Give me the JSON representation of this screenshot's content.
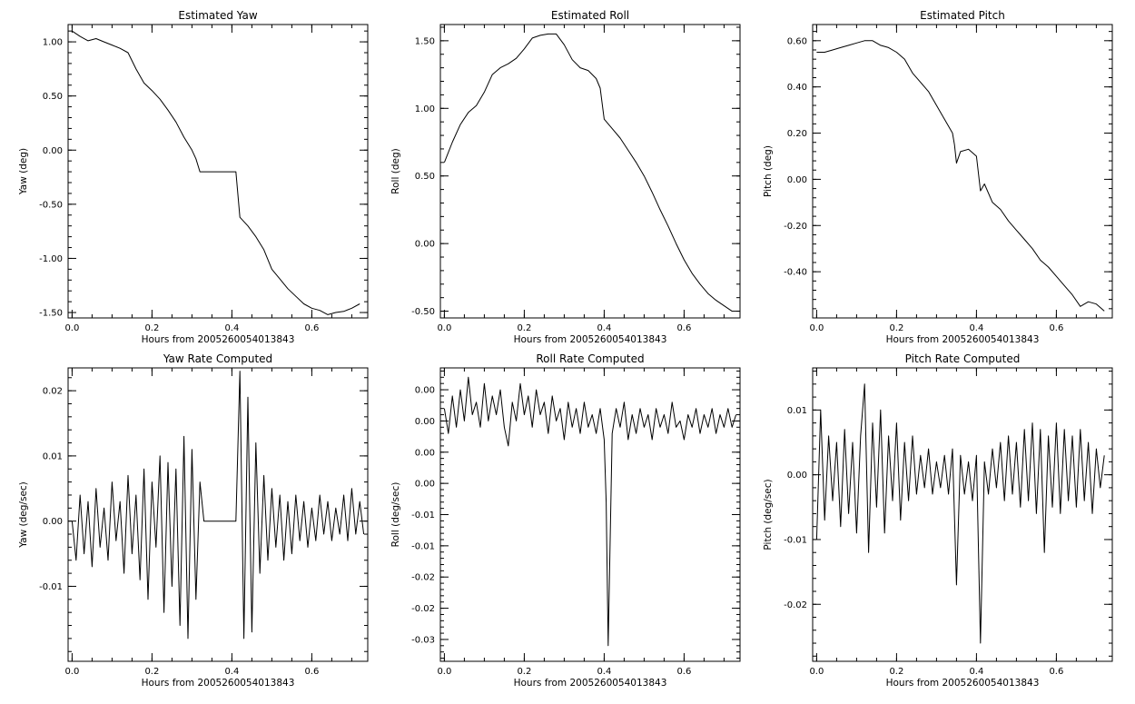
{
  "chart_data": [
    {
      "type": "line",
      "title": "Estimated Yaw",
      "xlabel": "Hours from 2005260054013843",
      "ylabel": "Yaw (deg)",
      "xlim": [
        -0.01,
        0.74
      ],
      "ylim": [
        -1.55,
        1.16
      ],
      "xticks": [
        0.0,
        0.2,
        0.4,
        0.6
      ],
      "xtick_labels": [
        "0.0",
        "0.2",
        "0.4",
        "0.6"
      ],
      "yticks": [
        -1.5,
        -1.0,
        -0.5,
        0.0,
        0.5,
        1.0
      ],
      "ytick_labels": [
        "-1.50",
        "-1.00",
        "-0.50",
        "0.00",
        "0.50",
        "1.00"
      ],
      "x": [
        0.0,
        0.02,
        0.04,
        0.06,
        0.08,
        0.1,
        0.12,
        0.14,
        0.16,
        0.18,
        0.2,
        0.22,
        0.24,
        0.26,
        0.28,
        0.3,
        0.31,
        0.32,
        0.33,
        0.35,
        0.38,
        0.41,
        0.42,
        0.44,
        0.46,
        0.48,
        0.5,
        0.52,
        0.54,
        0.56,
        0.58,
        0.6,
        0.62,
        0.64,
        0.66,
        0.68,
        0.7,
        0.72
      ],
      "values": [
        1.1,
        1.05,
        1.01,
        1.03,
        1.0,
        0.97,
        0.94,
        0.9,
        0.75,
        0.62,
        0.55,
        0.47,
        0.37,
        0.26,
        0.12,
        0.0,
        -0.08,
        -0.2,
        -0.2,
        -0.2,
        -0.2,
        -0.2,
        -0.62,
        -0.7,
        -0.8,
        -0.92,
        -1.1,
        -1.19,
        -1.28,
        -1.35,
        -1.42,
        -1.46,
        -1.48,
        -1.52,
        -1.5,
        -1.49,
        -1.46,
        -1.42
      ]
    },
    {
      "type": "line",
      "title": "Estimated Roll",
      "xlabel": "Hours from 2005260054013843",
      "ylabel": "Roll (deg)",
      "xlim": [
        -0.01,
        0.74
      ],
      "ylim": [
        -0.55,
        1.62
      ],
      "xticks": [
        0.0,
        0.2,
        0.4,
        0.6
      ],
      "xtick_labels": [
        "0.0",
        "0.2",
        "0.4",
        "0.6"
      ],
      "yticks": [
        -0.5,
        0.0,
        0.5,
        1.0,
        1.5
      ],
      "ytick_labels": [
        "-0.50",
        "0.00",
        "0.50",
        "1.00",
        "1.50"
      ],
      "x": [
        0.0,
        0.02,
        0.04,
        0.06,
        0.08,
        0.1,
        0.12,
        0.14,
        0.16,
        0.18,
        0.2,
        0.22,
        0.24,
        0.26,
        0.28,
        0.3,
        0.32,
        0.34,
        0.36,
        0.38,
        0.39,
        0.4,
        0.42,
        0.44,
        0.46,
        0.48,
        0.5,
        0.52,
        0.54,
        0.56,
        0.58,
        0.6,
        0.62,
        0.64,
        0.66,
        0.68,
        0.7,
        0.72
      ],
      "values": [
        0.6,
        0.75,
        0.88,
        0.97,
        1.02,
        1.12,
        1.25,
        1.3,
        1.33,
        1.37,
        1.44,
        1.52,
        1.54,
        1.55,
        1.55,
        1.47,
        1.36,
        1.3,
        1.28,
        1.22,
        1.15,
        0.92,
        0.85,
        0.78,
        0.69,
        0.6,
        0.5,
        0.38,
        0.25,
        0.13,
        0.0,
        -0.12,
        -0.22,
        -0.3,
        -0.37,
        -0.42,
        -0.46,
        -0.5
      ]
    },
    {
      "type": "line",
      "title": "Estimated Pitch",
      "xlabel": "Hours from 2005260054013843",
      "ylabel": "Pitch (deg)",
      "xlim": [
        -0.01,
        0.74
      ],
      "ylim": [
        -0.6,
        0.67
      ],
      "xticks": [
        0.0,
        0.2,
        0.4,
        0.6
      ],
      "xtick_labels": [
        "0.0",
        "0.2",
        "0.4",
        "0.6"
      ],
      "yticks": [
        -0.4,
        -0.2,
        0.0,
        0.2,
        0.4,
        0.6
      ],
      "ytick_labels": [
        "-0.40",
        "-0.20",
        "0.00",
        "0.20",
        "0.40",
        "0.60"
      ],
      "x": [
        0.0,
        0.02,
        0.04,
        0.06,
        0.08,
        0.1,
        0.12,
        0.14,
        0.16,
        0.18,
        0.2,
        0.22,
        0.24,
        0.26,
        0.28,
        0.3,
        0.32,
        0.34,
        0.345,
        0.35,
        0.36,
        0.38,
        0.4,
        0.41,
        0.42,
        0.44,
        0.46,
        0.48,
        0.5,
        0.52,
        0.54,
        0.56,
        0.58,
        0.6,
        0.62,
        0.64,
        0.66,
        0.68,
        0.7,
        0.72
      ],
      "values": [
        0.55,
        0.55,
        0.56,
        0.57,
        0.58,
        0.59,
        0.6,
        0.6,
        0.58,
        0.57,
        0.55,
        0.52,
        0.46,
        0.42,
        0.38,
        0.32,
        0.26,
        0.2,
        0.15,
        0.07,
        0.12,
        0.13,
        0.1,
        -0.05,
        -0.02,
        -0.1,
        -0.13,
        -0.18,
        -0.22,
        -0.26,
        -0.3,
        -0.35,
        -0.38,
        -0.42,
        -0.46,
        -0.5,
        -0.55,
        -0.53,
        -0.54,
        -0.57
      ]
    },
    {
      "type": "line",
      "title": "Yaw Rate Computed",
      "xlabel": "Hours from 2005260054013843",
      "ylabel": "Yaw (deg/sec)",
      "xlim": [
        -0.01,
        0.74
      ],
      "ylim": [
        -0.0215,
        0.0235
      ],
      "xticks": [
        0.0,
        0.2,
        0.4,
        0.6
      ],
      "xtick_labels": [
        "0.0",
        "0.2",
        "0.4",
        "0.6"
      ],
      "yticks": [
        -0.01,
        0.0,
        0.01,
        0.02
      ],
      "ytick_labels": [
        "-0.01",
        "0.00",
        "0.01",
        "0.02"
      ],
      "x": [
        0.0,
        0.01,
        0.02,
        0.03,
        0.04,
        0.05,
        0.06,
        0.07,
        0.08,
        0.09,
        0.1,
        0.11,
        0.12,
        0.13,
        0.14,
        0.15,
        0.16,
        0.17,
        0.18,
        0.19,
        0.2,
        0.21,
        0.22,
        0.23,
        0.24,
        0.25,
        0.26,
        0.27,
        0.28,
        0.29,
        0.3,
        0.31,
        0.32,
        0.33,
        0.37,
        0.41,
        0.42,
        0.43,
        0.44,
        0.45,
        0.46,
        0.47,
        0.48,
        0.49,
        0.5,
        0.51,
        0.52,
        0.53,
        0.54,
        0.55,
        0.56,
        0.57,
        0.58,
        0.59,
        0.6,
        0.61,
        0.62,
        0.63,
        0.64,
        0.65,
        0.66,
        0.67,
        0.68,
        0.69,
        0.7,
        0.71,
        0.72,
        0.73
      ],
      "values": [
        0.0,
        -0.006,
        0.004,
        -0.005,
        0.003,
        -0.007,
        0.005,
        -0.004,
        0.002,
        -0.006,
        0.006,
        -0.003,
        0.003,
        -0.008,
        0.007,
        -0.005,
        0.004,
        -0.009,
        0.008,
        -0.012,
        0.006,
        -0.004,
        0.01,
        -0.014,
        0.009,
        -0.01,
        0.008,
        -0.016,
        0.013,
        -0.018,
        0.011,
        -0.012,
        0.006,
        0.0,
        0.0,
        0.0,
        0.023,
        -0.018,
        0.019,
        -0.017,
        0.012,
        -0.008,
        0.007,
        -0.006,
        0.005,
        -0.004,
        0.004,
        -0.006,
        0.003,
        -0.005,
        0.004,
        -0.003,
        0.003,
        -0.004,
        0.002,
        -0.003,
        0.004,
        -0.002,
        0.003,
        -0.003,
        0.002,
        -0.002,
        0.004,
        -0.003,
        0.005,
        -0.002,
        0.003,
        -0.002
      ]
    },
    {
      "type": "line",
      "title": "Roll Rate Computed",
      "xlabel": "Hours from 2005260054013843",
      "ylabel": "Roll (deg/sec)",
      "xlim": [
        -0.01,
        0.74
      ],
      "ylim": [
        -0.0335,
        0.0135
      ],
      "xticks": [
        0.0,
        0.2,
        0.4,
        0.6
      ],
      "xtick_labels": [
        "0.0",
        "0.2",
        "0.4",
        "0.6"
      ],
      "yticks": [
        -0.03,
        -0.025,
        -0.02,
        -0.015,
        -0.01,
        -0.005,
        0.0,
        0.005,
        0.01
      ],
      "ytick_labels": [
        "-0.03",
        "-0.02",
        "-0.02",
        "-0.01",
        "-0.01",
        "0.00",
        "0.00",
        "0.00",
        "0.00"
      ],
      "x": [
        0.0,
        0.01,
        0.02,
        0.03,
        0.04,
        0.05,
        0.06,
        0.07,
        0.08,
        0.09,
        0.1,
        0.11,
        0.12,
        0.13,
        0.14,
        0.15,
        0.16,
        0.17,
        0.18,
        0.19,
        0.2,
        0.21,
        0.22,
        0.23,
        0.24,
        0.25,
        0.26,
        0.27,
        0.28,
        0.29,
        0.3,
        0.31,
        0.32,
        0.33,
        0.34,
        0.35,
        0.36,
        0.37,
        0.38,
        0.39,
        0.4,
        0.405,
        0.41,
        0.42,
        0.43,
        0.44,
        0.45,
        0.46,
        0.47,
        0.48,
        0.49,
        0.5,
        0.51,
        0.52,
        0.53,
        0.54,
        0.55,
        0.56,
        0.57,
        0.58,
        0.59,
        0.6,
        0.61,
        0.62,
        0.63,
        0.64,
        0.65,
        0.66,
        0.67,
        0.68,
        0.69,
        0.7,
        0.71,
        0.72,
        0.73
      ],
      "values": [
        0.007,
        0.003,
        0.009,
        0.004,
        0.01,
        0.005,
        0.012,
        0.006,
        0.008,
        0.004,
        0.011,
        0.005,
        0.009,
        0.006,
        0.01,
        0.004,
        0.001,
        0.008,
        0.005,
        0.011,
        0.006,
        0.009,
        0.004,
        0.01,
        0.006,
        0.008,
        0.003,
        0.009,
        0.005,
        0.007,
        0.002,
        0.008,
        0.004,
        0.007,
        0.003,
        0.008,
        0.004,
        0.006,
        0.003,
        0.007,
        0.002,
        -0.008,
        -0.031,
        0.003,
        0.007,
        0.004,
        0.008,
        0.002,
        0.006,
        0.003,
        0.007,
        0.004,
        0.006,
        0.002,
        0.007,
        0.004,
        0.006,
        0.003,
        0.008,
        0.004,
        0.005,
        0.002,
        0.006,
        0.004,
        0.007,
        0.003,
        0.006,
        0.004,
        0.007,
        0.003,
        0.006,
        0.004,
        0.007,
        0.004,
        0.006
      ]
    },
    {
      "type": "line",
      "title": "Pitch Rate Computed",
      "xlabel": "Hours from 2005260054013843",
      "ylabel": "Pitch (deg/sec)",
      "xlim": [
        -0.01,
        0.74
      ],
      "ylim": [
        -0.0288,
        0.0165
      ],
      "xticks": [
        0.0,
        0.2,
        0.4,
        0.6
      ],
      "xtick_labels": [
        "0.0",
        "0.2",
        "0.4",
        "0.6"
      ],
      "yticks": [
        -0.02,
        -0.01,
        0.0,
        0.01
      ],
      "ytick_labels": [
        "-0.02",
        "-0.01",
        "0.00",
        "0.01"
      ],
      "x": [
        0.0,
        0.01,
        0.02,
        0.03,
        0.04,
        0.05,
        0.06,
        0.07,
        0.08,
        0.09,
        0.1,
        0.11,
        0.12,
        0.13,
        0.14,
        0.15,
        0.16,
        0.17,
        0.18,
        0.19,
        0.2,
        0.21,
        0.22,
        0.23,
        0.24,
        0.25,
        0.26,
        0.27,
        0.28,
        0.29,
        0.3,
        0.31,
        0.32,
        0.33,
        0.34,
        0.35,
        0.36,
        0.37,
        0.38,
        0.39,
        0.4,
        0.41,
        0.42,
        0.43,
        0.44,
        0.45,
        0.46,
        0.47,
        0.48,
        0.49,
        0.5,
        0.51,
        0.52,
        0.53,
        0.54,
        0.55,
        0.56,
        0.57,
        0.58,
        0.59,
        0.6,
        0.61,
        0.62,
        0.63,
        0.64,
        0.65,
        0.66,
        0.67,
        0.68,
        0.69,
        0.7,
        0.71,
        0.72
      ],
      "values": [
        -0.01,
        0.01,
        -0.007,
        0.006,
        -0.004,
        0.005,
        -0.008,
        0.007,
        -0.006,
        0.005,
        -0.009,
        0.006,
        0.014,
        -0.012,
        0.008,
        -0.005,
        0.01,
        -0.009,
        0.006,
        -0.004,
        0.008,
        -0.007,
        0.005,
        -0.004,
        0.006,
        -0.003,
        0.003,
        -0.002,
        0.004,
        -0.003,
        0.002,
        -0.002,
        0.003,
        -0.003,
        0.004,
        -0.017,
        0.003,
        -0.003,
        0.002,
        -0.004,
        0.003,
        -0.026,
        0.002,
        -0.003,
        0.004,
        -0.002,
        0.005,
        -0.004,
        0.006,
        -0.003,
        0.005,
        -0.005,
        0.007,
        -0.004,
        0.008,
        -0.006,
        0.007,
        -0.012,
        0.006,
        -0.005,
        0.008,
        -0.006,
        0.007,
        -0.004,
        0.006,
        -0.005,
        0.007,
        -0.004,
        0.005,
        -0.006,
        0.004,
        -0.002,
        0.003
      ]
    }
  ]
}
